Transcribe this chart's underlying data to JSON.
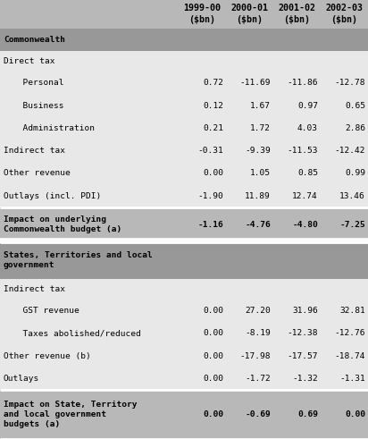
{
  "col_headers_line1": [
    "",
    "1999-00",
    "2000-01",
    "2001-02",
    "2002-03"
  ],
  "col_headers_line2": [
    "",
    "($bn)",
    "($bn)",
    "($bn)",
    "($bn)"
  ],
  "rows": [
    {
      "label": "Commonwealth",
      "values": [
        "",
        "",
        "",
        ""
      ],
      "style": "section_header"
    },
    {
      "label": "Direct tax",
      "values": [
        "",
        "",
        "",
        ""
      ],
      "style": "subheader"
    },
    {
      "label": "  Personal",
      "values": [
        "0.72",
        "-11.69",
        "-11.86",
        "-12.78"
      ],
      "style": "data_indent"
    },
    {
      "label": "  Business",
      "values": [
        "0.12",
        "1.67",
        "0.97",
        "0.65"
      ],
      "style": "data_indent"
    },
    {
      "label": "  Administration",
      "values": [
        "0.21",
        "1.72",
        "4.03",
        "2.86"
      ],
      "style": "data_indent"
    },
    {
      "label": "Indirect tax",
      "values": [
        "-0.31",
        "-9.39",
        "-11.53",
        "-12.42"
      ],
      "style": "data"
    },
    {
      "label": "Other revenue",
      "values": [
        "0.00",
        "1.05",
        "0.85",
        "0.99"
      ],
      "style": "data"
    },
    {
      "label": "Outlays (incl. PDI)",
      "values": [
        "-1.90",
        "11.89",
        "12.74",
        "13.46"
      ],
      "style": "data"
    },
    {
      "label": "Impact on underlying\nCommonwealth budget (a)",
      "values": [
        "-1.16",
        "-4.76",
        "-4.80",
        "-7.25"
      ],
      "style": "bold_data"
    },
    {
      "label": "States, Territories and local\ngovernment",
      "values": [
        "",
        "",
        "",
        ""
      ],
      "style": "section_header2"
    },
    {
      "label": "Indirect tax",
      "values": [
        "",
        "",
        "",
        ""
      ],
      "style": "subheader"
    },
    {
      "label": "  GST revenue",
      "values": [
        "0.00",
        "27.20",
        "31.96",
        "32.81"
      ],
      "style": "data_indent"
    },
    {
      "label": "  Taxes abolished/reduced",
      "values": [
        "0.00",
        "-8.19",
        "-12.38",
        "-12.76"
      ],
      "style": "data_indent"
    },
    {
      "label": "Other revenue (b)",
      "values": [
        "0.00",
        "-17.98",
        "-17.57",
        "-18.74"
      ],
      "style": "data"
    },
    {
      "label": "Outlays",
      "values": [
        "0.00",
        "-1.72",
        "-1.32",
        "-1.31"
      ],
      "style": "data"
    },
    {
      "label": "Impact on State, Territory\nand local government\nbudgets (a)",
      "values": [
        "0.00",
        "-0.69",
        "0.69",
        "0.00"
      ],
      "style": "bold_data"
    }
  ],
  "bg_main": "#b8b8b8",
  "bg_white": "#e8e8e8",
  "bg_section": "#989898",
  "bg_separator": "#ffffff",
  "text_color": "#000000",
  "font_size": 6.8,
  "header_font_size": 7.2,
  "fig_width": 4.12,
  "fig_height": 4.91,
  "dpi": 100
}
